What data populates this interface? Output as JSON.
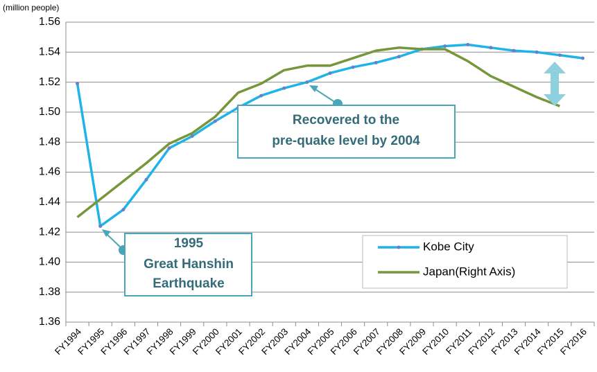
{
  "chart_data": {
    "type": "line",
    "y_label": "(million people)",
    "categories": [
      "FY1994",
      "FY1995",
      "FY1996",
      "FY1997",
      "FY1998",
      "FY1999",
      "FY2000",
      "FY2001",
      "FY2002",
      "FY2003",
      "FY2004",
      "FY2005",
      "FY2006",
      "FY2007",
      "FY2008",
      "FY2009",
      "FY2010",
      "FY2011",
      "FY2012",
      "FY2013",
      "FY2014",
      "FY2015",
      "FY2016"
    ],
    "series": [
      {
        "name": "Kobe City",
        "color": "#1fb4e8",
        "markers": true,
        "values": [
          1.519,
          1.424,
          1.435,
          1.455,
          1.476,
          1.484,
          1.494,
          1.503,
          1.511,
          1.516,
          1.52,
          1.526,
          1.53,
          1.533,
          1.537,
          1.542,
          1.544,
          1.545,
          1.543,
          1.541,
          1.54,
          1.538,
          1.536
        ]
      },
      {
        "name": "Japan(Right Axis)",
        "color": "#76963a",
        "markers": false,
        "values": [
          1.43,
          1.442,
          1.454,
          1.466,
          1.479,
          1.486,
          1.497,
          1.513,
          1.519,
          1.528,
          1.531,
          1.531,
          1.536,
          1.541,
          1.543,
          1.542,
          1.542,
          1.534,
          1.524,
          1.517,
          1.51,
          1.504,
          null
        ]
      }
    ],
    "ylim": [
      1.36,
      1.56
    ],
    "yticks": [
      {
        "value": 1.36,
        "label": "1.36"
      },
      {
        "value": 1.38,
        "label": "1.38"
      },
      {
        "value": 1.4,
        "label": "1.40"
      },
      {
        "value": 1.42,
        "label": "1.42"
      },
      {
        "value": 1.44,
        "label": "1.44"
      },
      {
        "value": 1.46,
        "label": "1.46"
      },
      {
        "value": 1.48,
        "label": "1.48"
      },
      {
        "value": 1.5,
        "label": "1.50"
      },
      {
        "value": 1.52,
        "label": "1.52"
      },
      {
        "value": 1.54,
        "label": "1.54"
      },
      {
        "value": 1.56,
        "label": "1.56"
      }
    ],
    "grid": true,
    "legend": "lower right",
    "annotations": [
      {
        "lines": [
          "Recovered to the",
          "pre-quake level by 2004"
        ]
      },
      {
        "lines": [
          "1995",
          "Great Hanshin",
          "Earthquake"
        ]
      }
    ]
  }
}
